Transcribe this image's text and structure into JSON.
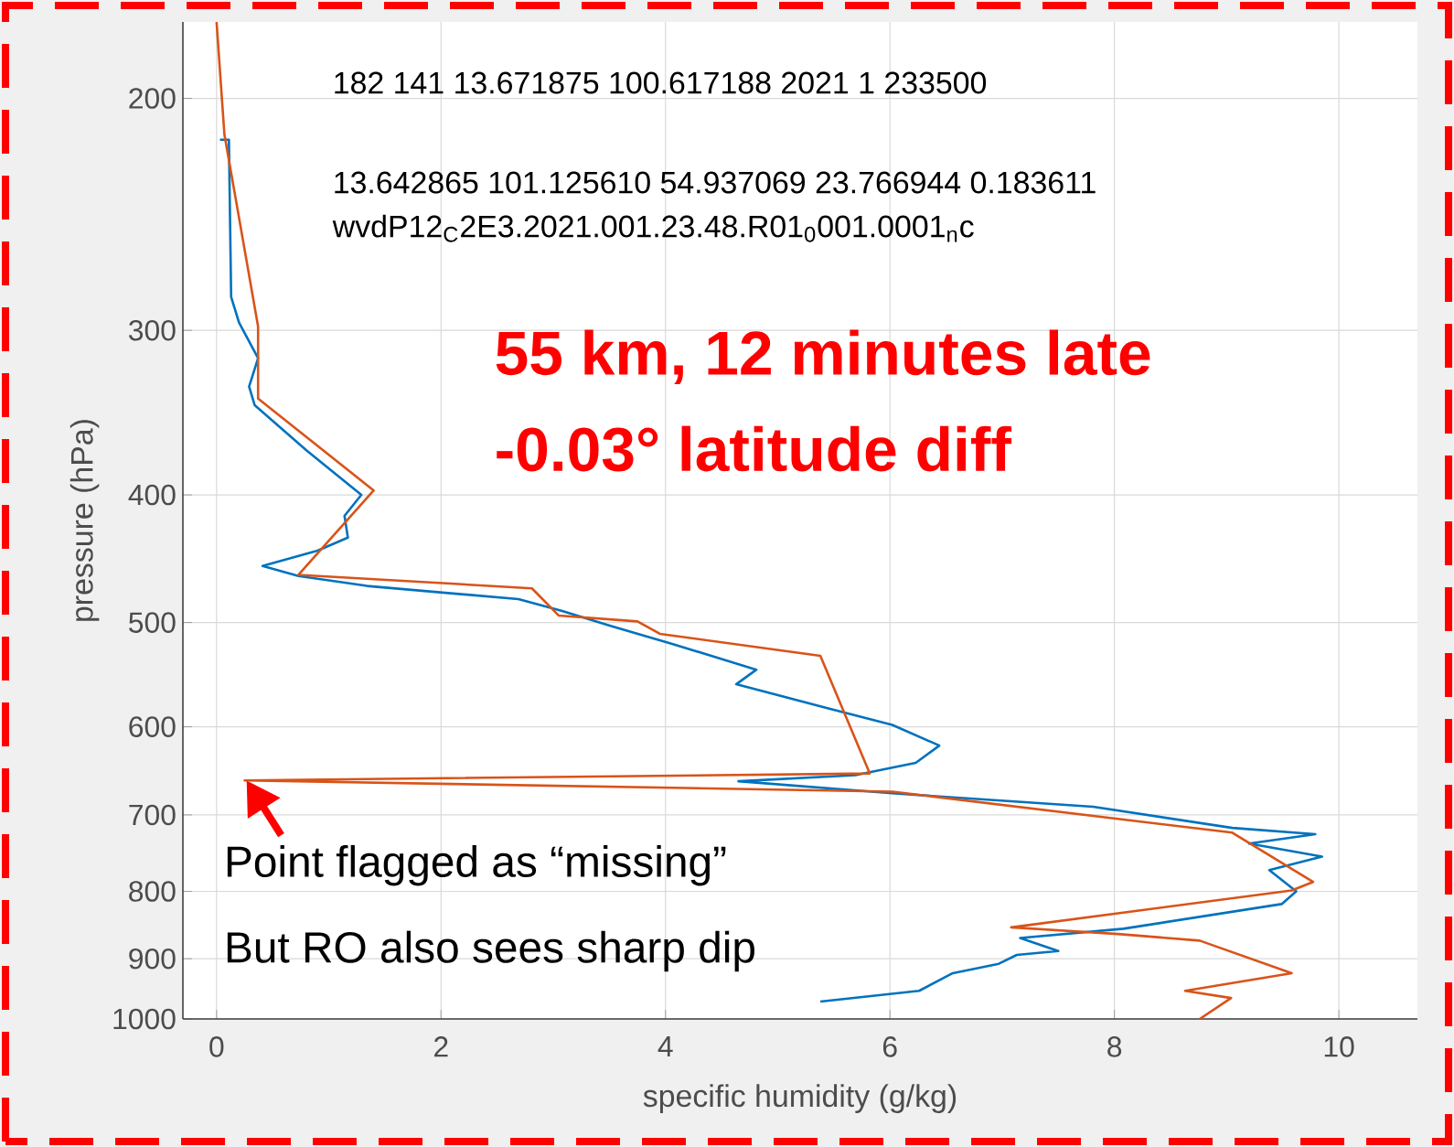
{
  "chart_data": {
    "type": "line",
    "xlabel": "specific humidity (g/kg)",
    "ylabel": "pressure (hPa)",
    "xlim": [
      -0.3,
      10.7
    ],
    "ylim": [
      1000,
      175
    ],
    "log": "y",
    "xticks": [
      0,
      2,
      4,
      6,
      8,
      10
    ],
    "yticks": [
      200,
      300,
      400,
      500,
      600,
      700,
      800,
      900,
      1000
    ],
    "grid": true,
    "series": [
      {
        "color": "#0072bd",
        "x": [
          0.03,
          0.11,
          0.13,
          0.2,
          0.37,
          0.29,
          0.34,
          0.8,
          1.29,
          1.14,
          1.17,
          0.9,
          0.41,
          0.73,
          1.34,
          2.69,
          3.08,
          3.51,
          4.06,
          4.81,
          4.63,
          5.42,
          6.02,
          6.44,
          6.23,
          5.69,
          4.65,
          6.02,
          7.81,
          9.05,
          9.79,
          9.2,
          9.85,
          9.38,
          9.62,
          9.49,
          8.08,
          7.16,
          7.5,
          7.13,
          6.97,
          6.56,
          6.26,
          5.38
        ],
        "values": [
          215,
          215,
          283,
          296,
          315,
          331,
          342,
          370,
          400,
          415,
          431,
          441,
          453,
          461,
          469,
          480,
          490,
          503,
          519,
          543,
          557,
          580,
          598,
          620,
          639,
          653,
          660,
          674,
          690,
          716,
          724,
          736,
          753,
          771,
          800,
          818,
          854,
          868,
          888,
          894,
          908,
          923,
          952,
          970
        ]
      },
      {
        "color": "#d95319",
        "x": [
          0.0,
          0.07,
          0.37,
          0.37,
          1.4,
          0.73,
          2.81,
          3.05,
          3.75,
          3.95,
          5.38,
          5.82,
          0.25,
          6.02,
          9.05,
          9.77,
          9.58,
          7.08,
          8.03,
          8.76,
          9.58,
          8.63,
          9.04,
          8.76
        ],
        "values": [
          175,
          213,
          298,
          338,
          397,
          460,
          471,
          494,
          499,
          510,
          530,
          651,
          659,
          672,
          722,
          787,
          799,
          852,
          862,
          872,
          923,
          952,
          964,
          1000
        ]
      }
    ],
    "annotations": [
      "182 141 13.671875 100.617188 2021 1 233500",
      "13.642865 101.125610 54.937069 23.766944 0.183611",
      "wvdP12$_{C}$2E3.2021.001.23.48.R01$_{0}$001.0001$_{n}$c",
      "55 km, 12 minutes late",
      "-0.03° latitude diff",
      {
        "text": "Point flagged as “missing”",
        "x": 0.25,
        "y": 659
      },
      "But RO also sees sharp dip"
    ]
  }
}
